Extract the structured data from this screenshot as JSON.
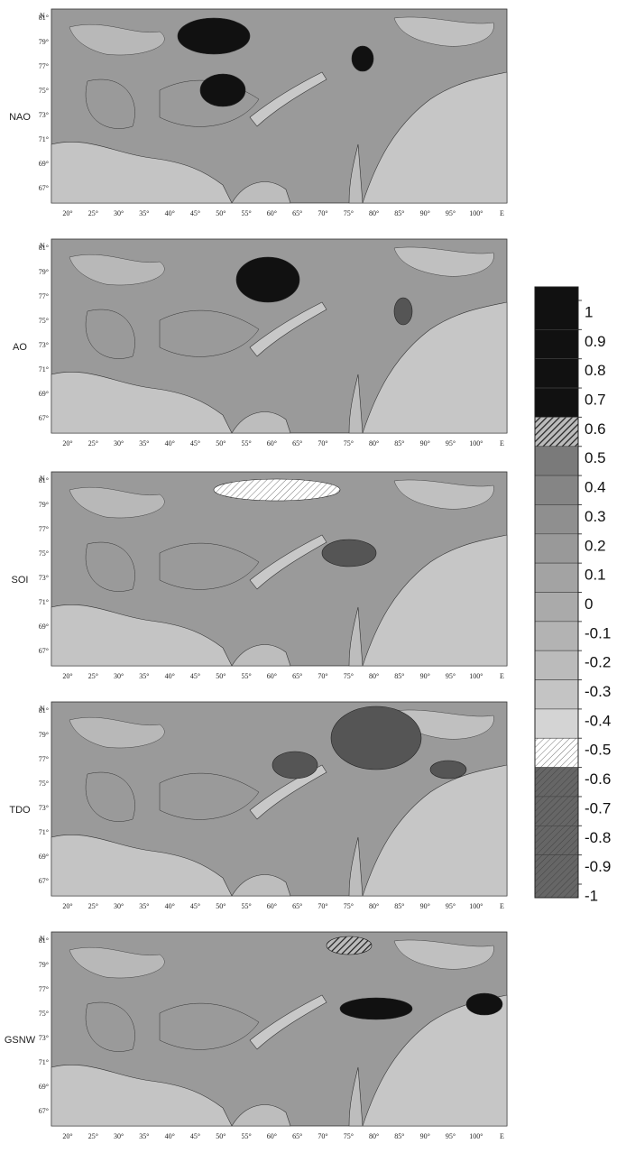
{
  "panels": [
    {
      "label": "NAO"
    },
    {
      "label": "AO"
    },
    {
      "label": "SOI"
    },
    {
      "label": "TDO"
    },
    {
      "label": "GSNW"
    }
  ],
  "north_label": "N",
  "east_label": "E",
  "latitude_labels": [
    "81°",
    "79°",
    "77°",
    "75°",
    "73°",
    "71°",
    "69°",
    "67°"
  ],
  "longitude_labels": [
    "20°",
    "25°",
    "30°",
    "35°",
    "40°",
    "45°",
    "50°",
    "55°",
    "60°",
    "65°",
    "70°",
    "75°",
    "80°",
    "85°",
    "90°",
    "95°",
    "100°"
  ],
  "colorbar": {
    "levels": [
      1,
      0.9,
      0.8,
      0.7,
      0.6,
      0.5,
      0.4,
      0.3,
      0.2,
      0.1,
      0,
      -0.1,
      -0.2,
      -0.3,
      -0.4,
      -0.5,
      -0.6,
      -0.7,
      -0.8,
      -0.9,
      -1
    ],
    "band_colors": [
      "#111111",
      "#111111",
      "#111111",
      "#111111",
      "url(#hatch-dark)",
      "#7a7a7a",
      "#858585",
      "#8f8f8f",
      "#999999",
      "#a3a3a3",
      "#aaaaaa",
      "#b3b3b3",
      "#bbbbbb",
      "#c4c4c4",
      "#d4d4d4",
      "url(#hatch-light)",
      "url(#hatch-gray)",
      "url(#hatch-gray)",
      "url(#hatch-gray)",
      "url(#hatch-gray)"
    ]
  }
}
